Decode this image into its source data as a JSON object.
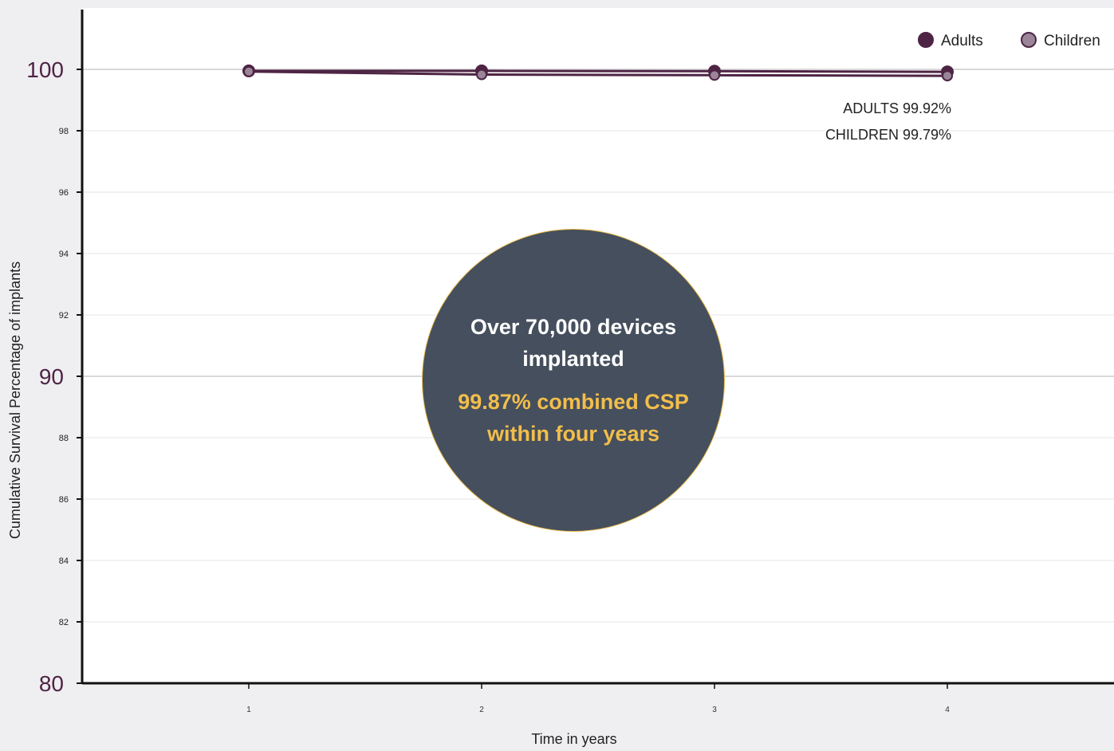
{
  "chart_data": {
    "type": "line",
    "x": [
      1,
      2,
      3,
      4
    ],
    "xlabel": "Time in years",
    "ylabel": "Cumulative Survival Percentage of implants",
    "ylim": [
      80,
      102
    ],
    "yticks_major": [
      80,
      90,
      100
    ],
    "yticks_minor": [
      82,
      84,
      86,
      88,
      92,
      94,
      96,
      98
    ],
    "grid": true,
    "legend_position": "top-right",
    "series": [
      {
        "name": "Adults",
        "values": [
          99.95,
          99.95,
          99.94,
          99.92
        ],
        "color": "#4e2444"
      },
      {
        "name": "Children",
        "values": [
          99.93,
          99.83,
          99.81,
          99.79
        ],
        "color": "#9a8599"
      }
    ],
    "annotations": {
      "adults": "ADULTS 99.92%",
      "children": "CHILDREN 99.79%"
    }
  },
  "callout": {
    "headline": "Over 70,000 devices implanted",
    "subline": "99.87% combined CSP within four years"
  },
  "colors": {
    "background": "#efeef1",
    "plot_background": "#ffffff",
    "axis": "#111111",
    "major_tick_label": "#4e2444",
    "callout_fill": "#454f5d",
    "callout_accent": "#f2be4b"
  }
}
